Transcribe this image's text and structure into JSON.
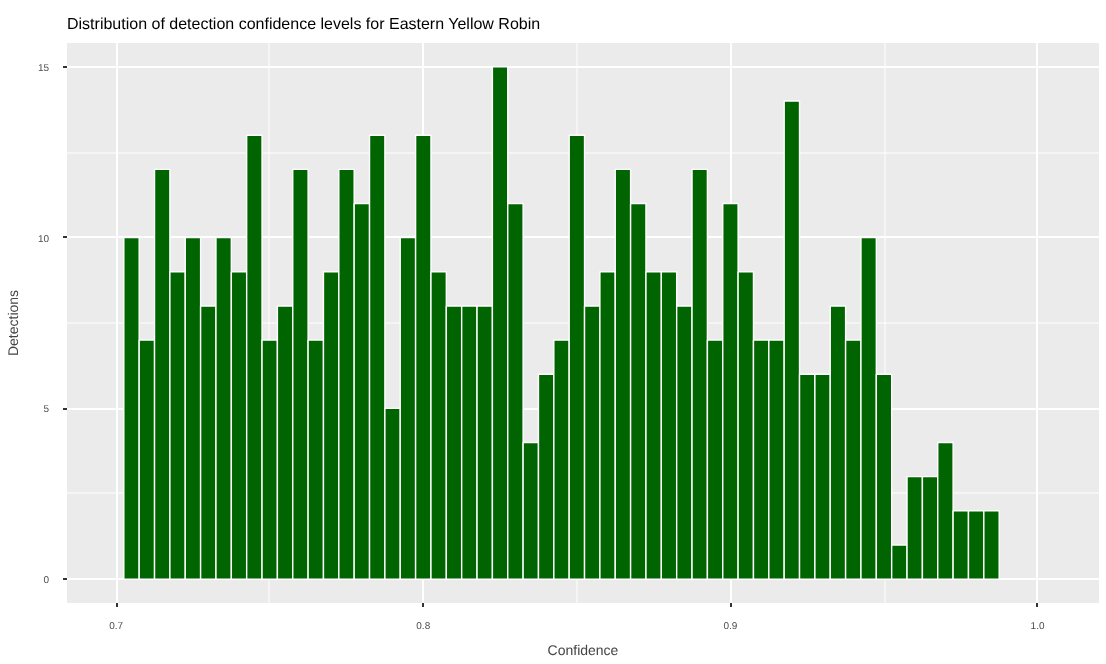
{
  "chart_data": {
    "type": "histogram",
    "title": "Distribution of detection confidence levels for Eastern Yellow Robin",
    "xlabel": "Confidence",
    "ylabel": "Detections",
    "bins": [
      0.7025,
      0.7075,
      0.7125,
      0.7175,
      0.7225,
      0.7275,
      0.7325,
      0.7375,
      0.7425,
      0.7475,
      0.7525,
      0.7575,
      0.7625,
      0.7675,
      0.7725,
      0.7775,
      0.7825,
      0.7875,
      0.7925,
      0.7975,
      0.8025,
      0.8075,
      0.8125,
      0.8175,
      0.8225,
      0.8275,
      0.8325,
      0.8375,
      0.8425,
      0.8475,
      0.8525,
      0.8575,
      0.8625,
      0.8675,
      0.8725,
      0.8775,
      0.8825,
      0.8875,
      0.8925,
      0.8975,
      0.9025,
      0.9075,
      0.9125,
      0.9175,
      0.9225,
      0.9275,
      0.9325,
      0.9375,
      0.9425,
      0.9475,
      0.9525,
      0.9575,
      0.9625,
      0.9675,
      0.9725,
      0.9775,
      0.9825,
      0.9875
    ],
    "values": [
      10,
      7,
      12,
      9,
      10,
      8,
      10,
      9,
      13,
      7,
      8,
      12,
      7,
      9,
      12,
      11,
      13,
      5,
      10,
      13,
      9,
      8,
      8,
      8,
      15,
      11,
      4,
      6,
      7,
      13,
      8,
      9,
      12,
      11,
      9,
      9,
      8,
      12,
      7,
      11,
      9,
      7,
      7,
      14,
      6,
      6,
      8,
      7,
      10,
      6,
      1,
      3,
      3,
      4,
      2,
      2,
      2
    ],
    "color": "#006400",
    "xlim": [
      0.684,
      1.02
    ],
    "ylim": [
      -0.7,
      15.7
    ],
    "xticks": [
      0.7,
      0.8,
      0.9,
      {
        "value": 1.0,
        "label": "1.0"
      }
    ],
    "yticks": [
      0,
      5,
      10,
      15
    ],
    "grid": true
  }
}
